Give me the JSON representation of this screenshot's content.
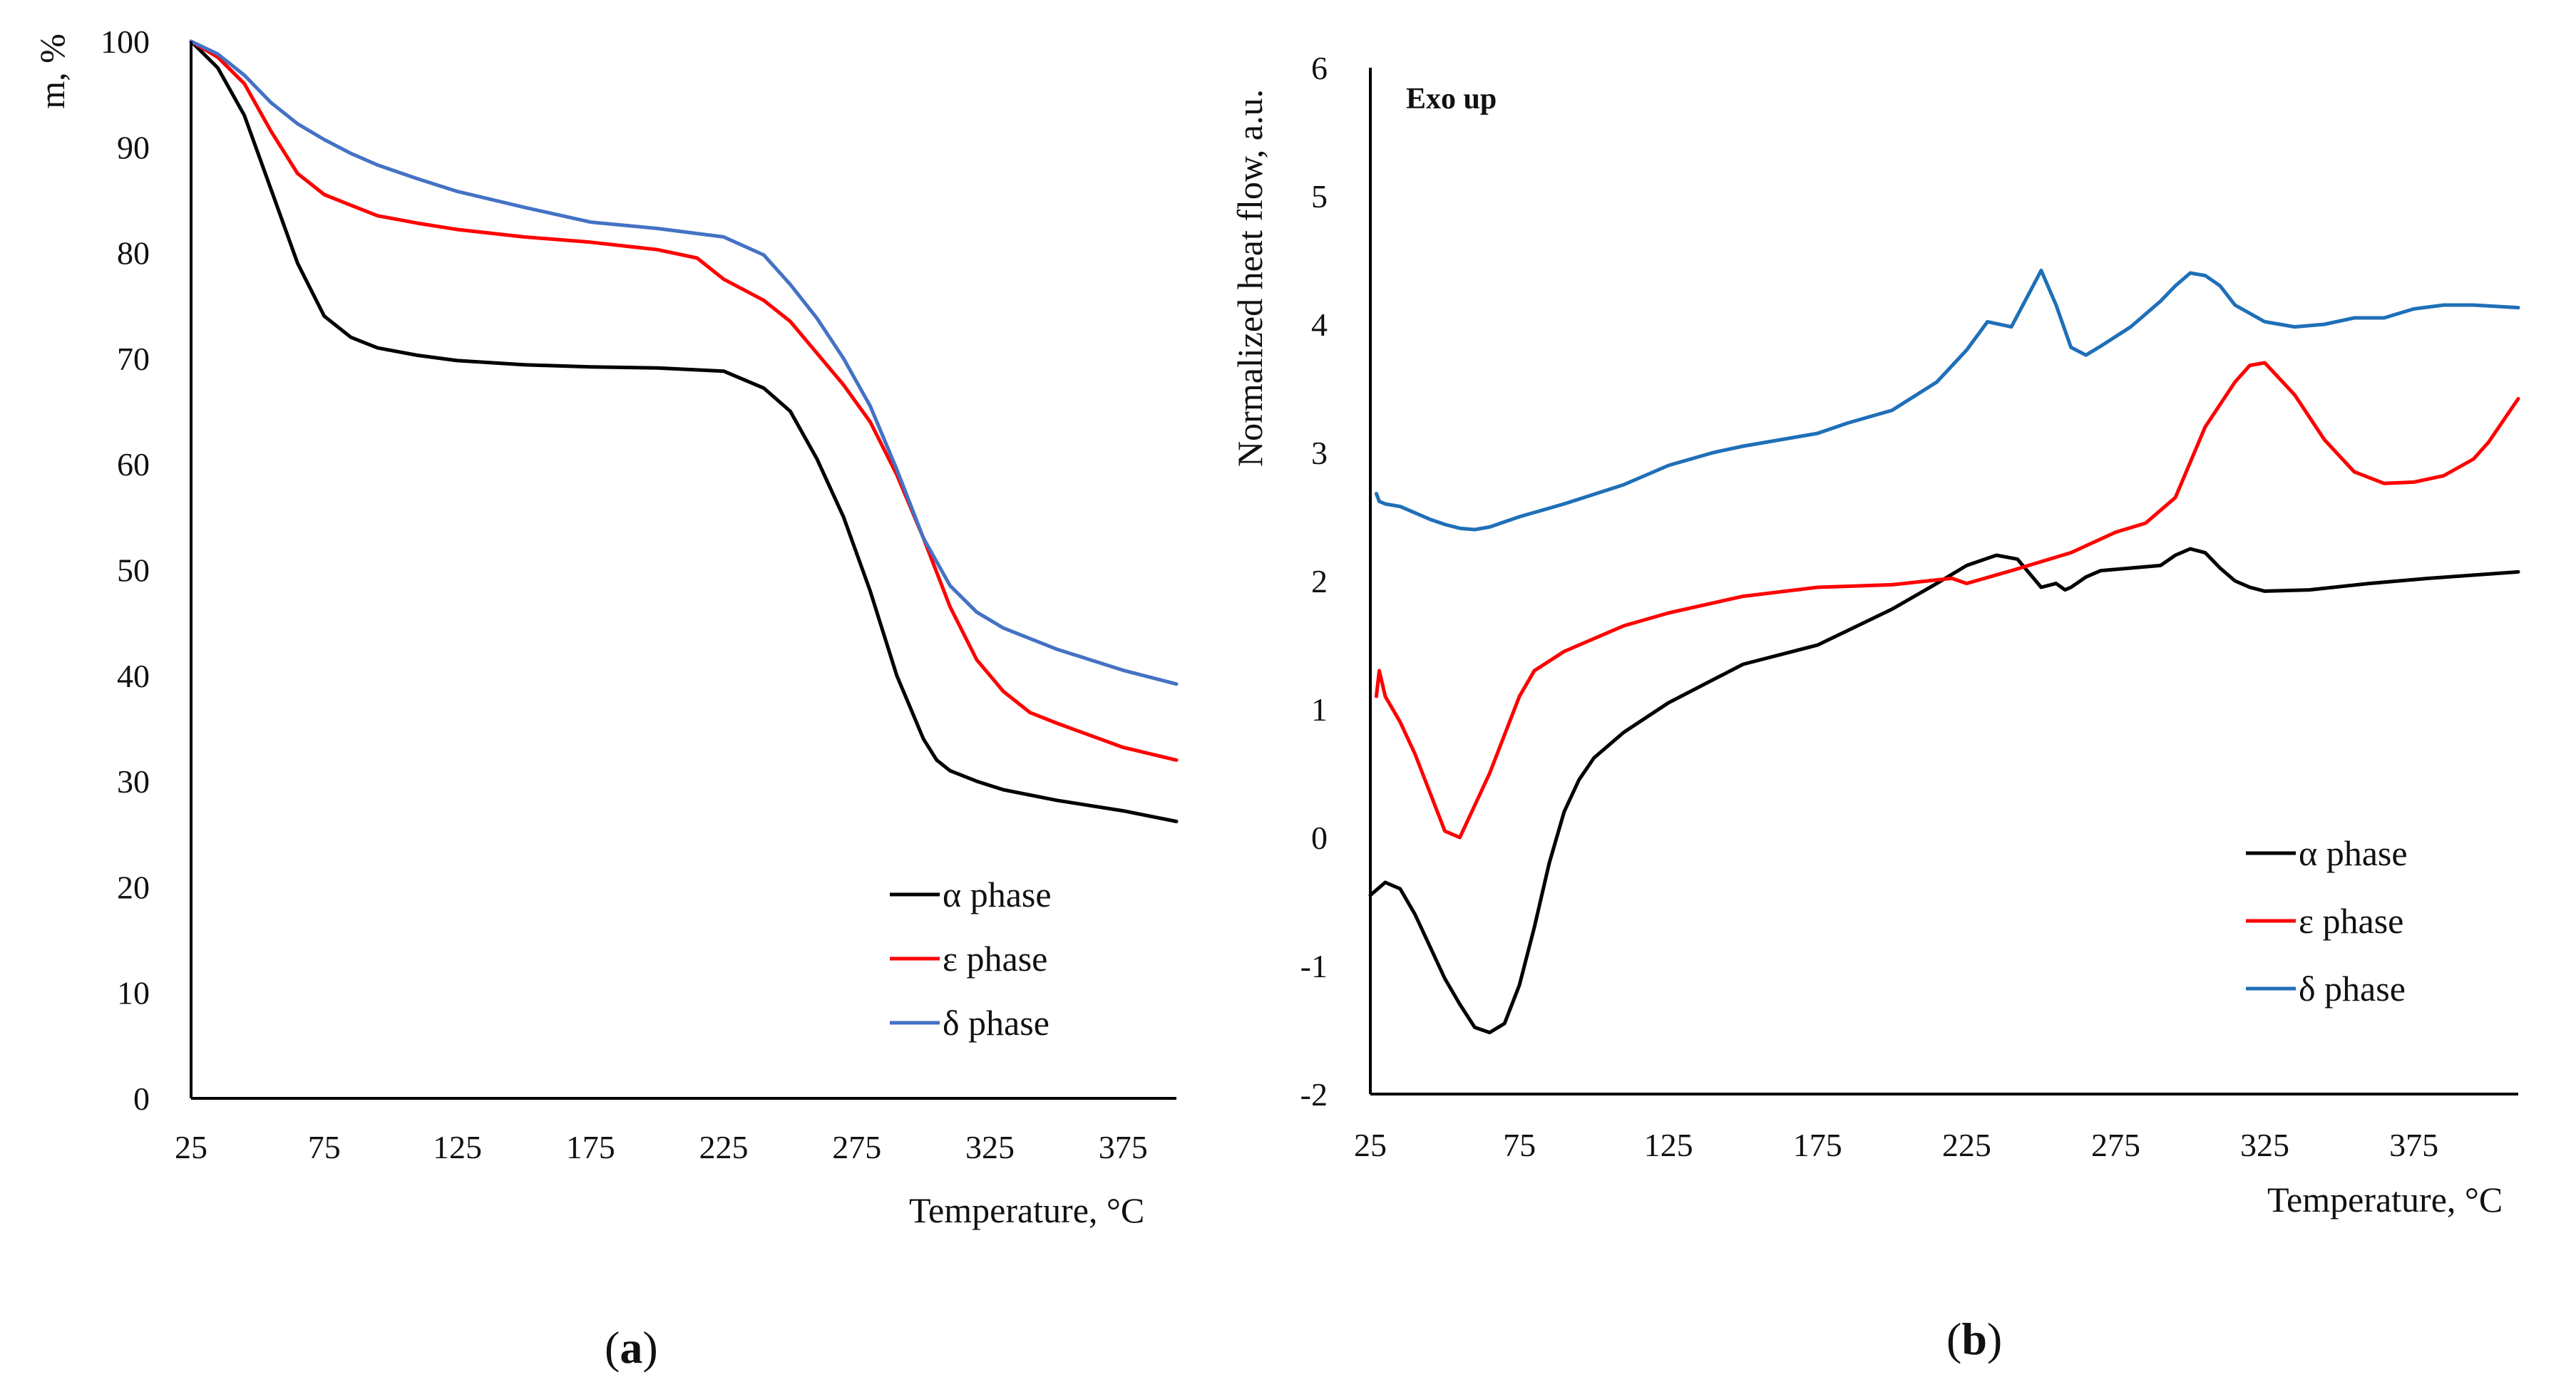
{
  "chart_data": [
    {
      "type": "line",
      "panel_label": "a",
      "xlabel": "Temperature, °C",
      "ylabel": "m, %",
      "xlim": [
        25,
        395
      ],
      "ylim": [
        0,
        100
      ],
      "xticks": [
        25,
        75,
        125,
        175,
        225,
        275,
        325,
        375
      ],
      "yticks": [
        0,
        10,
        20,
        30,
        40,
        50,
        60,
        70,
        80,
        90,
        100
      ],
      "legend": "bottom-right",
      "series": [
        {
          "name": "α phase",
          "color": "#000000",
          "x": [
            25,
            35,
            45,
            55,
            65,
            75,
            85,
            95,
            110,
            125,
            150,
            175,
            200,
            225,
            240,
            250,
            260,
            270,
            280,
            290,
            300,
            305,
            310,
            320,
            330,
            350,
            375,
            395
          ],
          "y": [
            100,
            97.5,
            93,
            86,
            79,
            74,
            72,
            71,
            70.3,
            69.8,
            69.4,
            69.2,
            69.1,
            68.8,
            67.2,
            65,
            60.5,
            55,
            48,
            40,
            34,
            32,
            31,
            30,
            29.2,
            28.2,
            27.2,
            26.2
          ]
        },
        {
          "name": "ε phase",
          "color": "#ff0000",
          "x": [
            25,
            35,
            45,
            55,
            65,
            75,
            85,
            95,
            110,
            125,
            150,
            175,
            200,
            215,
            225,
            240,
            250,
            260,
            270,
            280,
            290,
            300,
            310,
            320,
            330,
            340,
            350,
            375,
            395
          ],
          "y": [
            100,
            98.5,
            96,
            91.5,
            87.5,
            85.5,
            84.5,
            83.5,
            82.8,
            82.2,
            81.5,
            81,
            80.3,
            79.5,
            77.5,
            75.5,
            73.5,
            70.5,
            67.5,
            64,
            59,
            53,
            46.5,
            41.5,
            38.5,
            36.5,
            35.5,
            33.2,
            32
          ]
        },
        {
          "name": "δ phase",
          "color": "#4472c4",
          "x": [
            25,
            35,
            45,
            55,
            65,
            75,
            85,
            95,
            110,
            125,
            150,
            175,
            200,
            225,
            240,
            250,
            260,
            270,
            280,
            290,
            300,
            310,
            320,
            330,
            350,
            375,
            395
          ],
          "y": [
            100,
            98.8,
            96.8,
            94.2,
            92.2,
            90.7,
            89.4,
            88.3,
            87,
            85.8,
            84.3,
            82.9,
            82.3,
            81.5,
            79.8,
            77,
            73.8,
            70,
            65.5,
            59.5,
            53,
            48.5,
            46,
            44.5,
            42.5,
            40.5,
            39.2
          ]
        }
      ]
    },
    {
      "type": "line",
      "panel_label": "b",
      "annotation": "Exo up",
      "xlabel": "Temperature, °C",
      "ylabel": "Normalized heat flow, a.u.",
      "xlim": [
        25,
        410
      ],
      "ylim": [
        -2,
        6
      ],
      "xticks": [
        25,
        75,
        125,
        175,
        225,
        275,
        325,
        375
      ],
      "yticks": [
        -2,
        -1,
        0,
        1,
        2,
        3,
        4,
        5,
        6
      ],
      "legend": "bottom-right",
      "series": [
        {
          "name": "α phase",
          "color": "#000000",
          "x": [
            25,
            30,
            35,
            40,
            45,
            50,
            55,
            60,
            65,
            70,
            75,
            80,
            85,
            90,
            95,
            100,
            110,
            125,
            150,
            175,
            200,
            215,
            225,
            235,
            242,
            250,
            255,
            258,
            260,
            265,
            270,
            280,
            290,
            295,
            300,
            305,
            310,
            315,
            320,
            325,
            340,
            360,
            380,
            410
          ],
          "y": [
            -0.45,
            -0.35,
            -0.4,
            -0.6,
            -0.85,
            -1.1,
            -1.3,
            -1.48,
            -1.52,
            -1.45,
            -1.15,
            -0.7,
            -0.2,
            0.2,
            0.45,
            0.62,
            0.82,
            1.05,
            1.35,
            1.5,
            1.78,
            1.98,
            2.12,
            2.2,
            2.17,
            1.95,
            1.98,
            1.93,
            1.95,
            2.03,
            2.08,
            2.1,
            2.12,
            2.2,
            2.25,
            2.22,
            2.1,
            2.0,
            1.95,
            1.92,
            1.93,
            1.98,
            2.02,
            2.07
          ]
        },
        {
          "name": "ε phase",
          "color": "#ff0000",
          "x": [
            27,
            28,
            30,
            35,
            40,
            45,
            50,
            55,
            60,
            65,
            70,
            75,
            80,
            90,
            100,
            110,
            125,
            150,
            175,
            200,
            220,
            225,
            240,
            260,
            275,
            285,
            295,
            305,
            315,
            320,
            325,
            335,
            345,
            355,
            365,
            375,
            385,
            395,
            400,
            410
          ],
          "y": [
            1.1,
            1.3,
            1.1,
            0.9,
            0.65,
            0.35,
            0.05,
            0.0,
            0.25,
            0.5,
            0.8,
            1.1,
            1.3,
            1.45,
            1.55,
            1.65,
            1.75,
            1.88,
            1.95,
            1.97,
            2.02,
            1.98,
            2.08,
            2.22,
            2.38,
            2.45,
            2.65,
            3.2,
            3.55,
            3.68,
            3.7,
            3.45,
            3.1,
            2.85,
            2.76,
            2.77,
            2.82,
            2.95,
            3.08,
            3.42
          ]
        },
        {
          "name": "δ phase",
          "color": "#1f6fb8",
          "x": [
            27,
            28,
            30,
            35,
            40,
            45,
            50,
            55,
            60,
            65,
            75,
            90,
            110,
            125,
            140,
            150,
            175,
            185,
            200,
            215,
            225,
            232,
            240,
            245,
            250,
            255,
            260,
            265,
            270,
            280,
            290,
            295,
            300,
            305,
            310,
            315,
            325,
            335,
            345,
            355,
            365,
            375,
            385,
            395,
            410
          ],
          "y": [
            2.68,
            2.62,
            2.6,
            2.58,
            2.53,
            2.48,
            2.44,
            2.41,
            2.4,
            2.42,
            2.5,
            2.6,
            2.75,
            2.9,
            3.0,
            3.05,
            3.15,
            3.23,
            3.33,
            3.55,
            3.8,
            4.02,
            3.98,
            4.2,
            4.42,
            4.15,
            3.82,
            3.76,
            3.83,
            3.98,
            4.18,
            4.3,
            4.4,
            4.38,
            4.3,
            4.15,
            4.02,
            3.98,
            4.0,
            4.05,
            4.05,
            4.12,
            4.15,
            4.15,
            4.13
          ]
        }
      ]
    }
  ]
}
